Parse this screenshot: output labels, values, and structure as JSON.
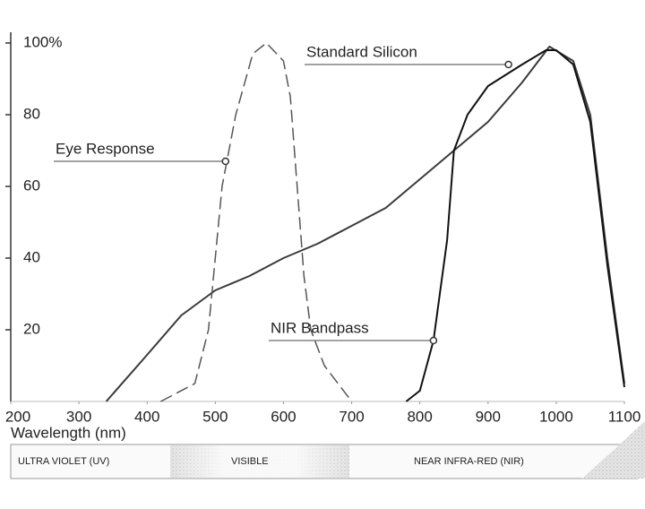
{
  "chart_data": {
    "type": "line",
    "x_label": "Wavelength (nm)",
    "xlim": [
      200,
      1100
    ],
    "xticks": [
      200,
      300,
      400,
      500,
      600,
      700,
      800,
      900,
      1000,
      1100
    ],
    "ylim": [
      0,
      100
    ],
    "yticks": [
      20,
      40,
      60,
      80,
      {
        "value": 100,
        "label": "100%"
      }
    ],
    "series": [
      {
        "name": "Standard Silicon",
        "color": "#3a3a3a",
        "dashed": false,
        "x": [
          340,
          400,
          450,
          500,
          550,
          600,
          650,
          700,
          750,
          800,
          850,
          900,
          950,
          990,
          1025,
          1050,
          1075,
          1100
        ],
        "values": [
          0,
          13,
          24,
          31,
          35,
          40,
          44,
          49,
          54,
          62,
          70,
          78,
          89,
          99,
          95,
          80,
          40,
          5
        ],
        "label_point": {
          "x": 930,
          "y": 94
        }
      },
      {
        "name": "Eye Response",
        "color": "#555555",
        "dashed": true,
        "x": [
          420,
          470,
          490,
          500,
          510,
          530,
          555,
          575,
          600,
          610,
          620,
          630,
          640,
          660,
          700
        ],
        "values": [
          0,
          5,
          20,
          40,
          60,
          80,
          97,
          100,
          95,
          85,
          60,
          35,
          20,
          10,
          0
        ],
        "label_point": {
          "x": 515,
          "y": 67
        }
      },
      {
        "name": "NIR Bandpass",
        "color": "#111111",
        "dashed": false,
        "x": [
          780,
          800,
          820,
          840,
          850,
          870,
          900,
          950,
          985,
          1000,
          1025,
          1050,
          1075,
          1100
        ],
        "values": [
          0,
          3,
          17,
          45,
          70,
          80,
          88,
          94,
          98,
          98,
          94,
          78,
          38,
          4
        ],
        "label_point": {
          "x": 820,
          "y": 17
        }
      }
    ],
    "spectrum_bands": [
      "ULTRA VIOLET (UV)",
      "VISIBLE",
      "NEAR INFRA-RED (NIR)"
    ]
  }
}
